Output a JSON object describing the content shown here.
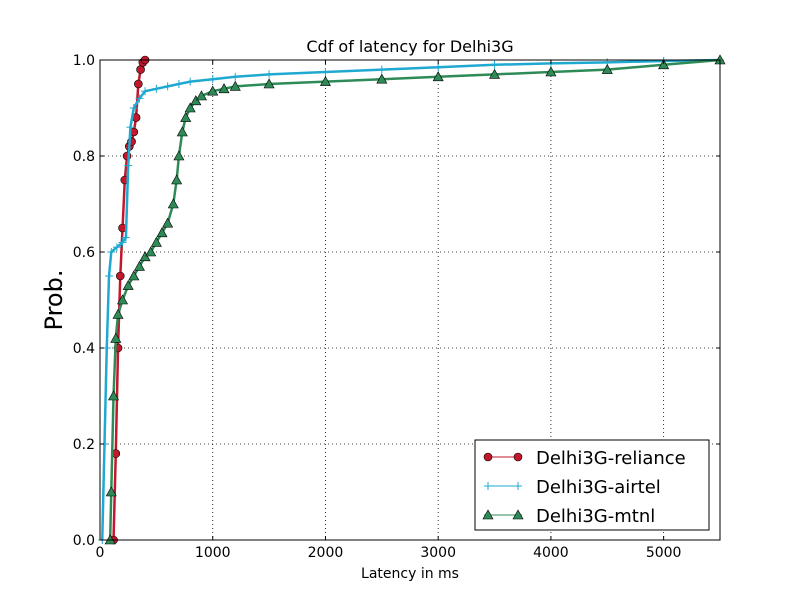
{
  "chart_data": {
    "type": "line",
    "title": "Cdf of latency for Delhi3G",
    "xlabel": "Latency in ms",
    "ylabel": "Prob.",
    "xlim": [
      0,
      5500
    ],
    "ylim": [
      0,
      1.0
    ],
    "x_ticks": [
      0,
      1000,
      2000,
      3000,
      4000,
      5000
    ],
    "y_ticks": [
      0.0,
      0.2,
      0.4,
      0.6,
      0.8,
      1.0
    ],
    "x_tick_labels": [
      "0",
      "1000",
      "2000",
      "3000",
      "4000",
      "5000"
    ],
    "y_tick_labels": [
      "0.0",
      "0.2",
      "0.4",
      "0.6",
      "0.8",
      "1.0"
    ],
    "grid": true,
    "legend_position": "bottom-right",
    "series": [
      {
        "name": "Delhi3G-reliance",
        "color": "#c1182b",
        "marker": "circle",
        "x": [
          120,
          140,
          160,
          180,
          200,
          220,
          240,
          260,
          280,
          300,
          320,
          340,
          360,
          380,
          400
        ],
        "y": [
          0.0,
          0.18,
          0.4,
          0.55,
          0.65,
          0.75,
          0.8,
          0.82,
          0.83,
          0.85,
          0.88,
          0.95,
          0.98,
          0.995,
          1.0
        ]
      },
      {
        "name": "Delhi3G-airtel",
        "color": "#1fa9d1",
        "marker": "plus",
        "x": [
          20,
          40,
          60,
          80,
          100,
          150,
          200,
          230,
          250,
          270,
          300,
          350,
          400,
          500,
          600,
          700,
          800,
          1000,
          1200,
          1500,
          2000,
          2500,
          3000,
          3500,
          4000,
          4500,
          5000,
          5500
        ],
        "y": [
          0.0,
          0.2,
          0.4,
          0.55,
          0.6,
          0.61,
          0.62,
          0.63,
          0.78,
          0.86,
          0.9,
          0.92,
          0.935,
          0.94,
          0.945,
          0.95,
          0.955,
          0.96,
          0.965,
          0.97,
          0.975,
          0.98,
          0.985,
          0.99,
          0.993,
          0.995,
          0.998,
          1.0
        ]
      },
      {
        "name": "Delhi3G-mtnl",
        "color": "#2e8b57",
        "marker": "triangle",
        "x": [
          90,
          100,
          120,
          140,
          160,
          200,
          250,
          300,
          350,
          400,
          450,
          500,
          550,
          600,
          650,
          680,
          700,
          730,
          760,
          800,
          850,
          900,
          1000,
          1100,
          1200,
          1500,
          2000,
          2500,
          3000,
          3500,
          4000,
          4500,
          5000,
          5500
        ],
        "y": [
          0.0,
          0.1,
          0.3,
          0.42,
          0.47,
          0.5,
          0.53,
          0.55,
          0.57,
          0.59,
          0.6,
          0.62,
          0.64,
          0.66,
          0.7,
          0.75,
          0.8,
          0.85,
          0.88,
          0.9,
          0.915,
          0.925,
          0.935,
          0.94,
          0.945,
          0.95,
          0.955,
          0.96,
          0.965,
          0.97,
          0.975,
          0.98,
          0.99,
          1.0
        ]
      }
    ]
  }
}
